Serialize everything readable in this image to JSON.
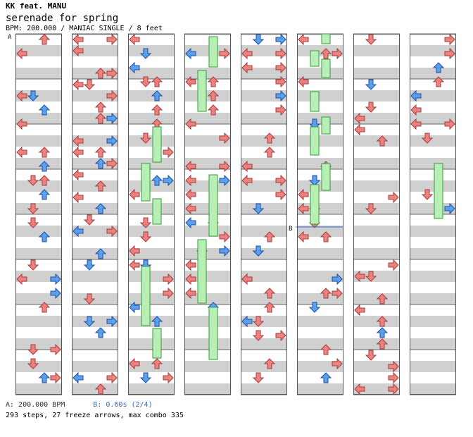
{
  "artist": "KK feat. MANU",
  "title": "serenade for spring",
  "info": "BPM: 200.000 / MANIAC SINGLE / 8 feet",
  "markers": {
    "a": "A",
    "b": "B"
  },
  "footer": {
    "bpm_a": "A: 200.000 BPM",
    "bpm_b": "B: 0.60s (2/4)"
  },
  "stats": "293 steps, 27 freeze arrows, max combo 335",
  "colors": {
    "note_red": "#f08080",
    "note_blue": "#5aa0f0",
    "freeze": "#b6f0b6",
    "stripe": "#d0d0d0"
  }
}
